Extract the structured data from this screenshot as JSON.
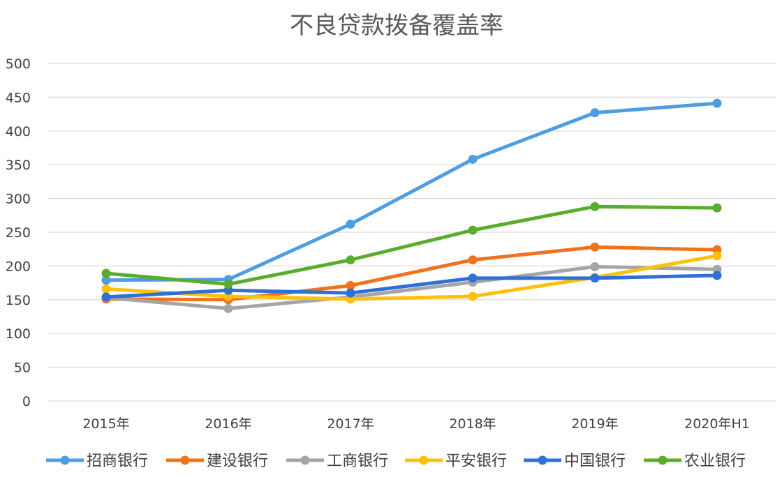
{
  "chart_data": {
    "type": "line",
    "title": "不良贷款拨备覆盖率",
    "xlabel": "",
    "ylabel": "",
    "categories": [
      "2015年",
      "2016年",
      "2017年",
      "2018年",
      "2019年",
      "2020年H1"
    ],
    "ylim": [
      0,
      500
    ],
    "yticks": [
      0,
      50,
      100,
      150,
      200,
      250,
      300,
      350,
      400,
      450,
      500
    ],
    "grid": true,
    "legend": "bottom",
    "series": [
      {
        "name": "招商银行",
        "color": "#4e9de0",
        "values": [
          179,
          180,
          262,
          358,
          427,
          441
        ]
      },
      {
        "name": "建设银行",
        "color": "#f2711c",
        "values": [
          151,
          150,
          171,
          209,
          228,
          224
        ]
      },
      {
        "name": "工商银行",
        "color": "#a5a5a5",
        "values": [
          153,
          137,
          154,
          176,
          199,
          195
        ]
      },
      {
        "name": "平安银行",
        "color": "#fbc10d",
        "values": [
          166,
          155,
          151,
          155,
          183,
          215
        ]
      },
      {
        "name": "中国银行",
        "color": "#2f6fd6",
        "values": [
          154,
          164,
          160,
          182,
          182,
          186
        ]
      },
      {
        "name": "农业银行",
        "color": "#5aad2c",
        "values": [
          189,
          173,
          209,
          253,
          288,
          286
        ]
      }
    ]
  }
}
